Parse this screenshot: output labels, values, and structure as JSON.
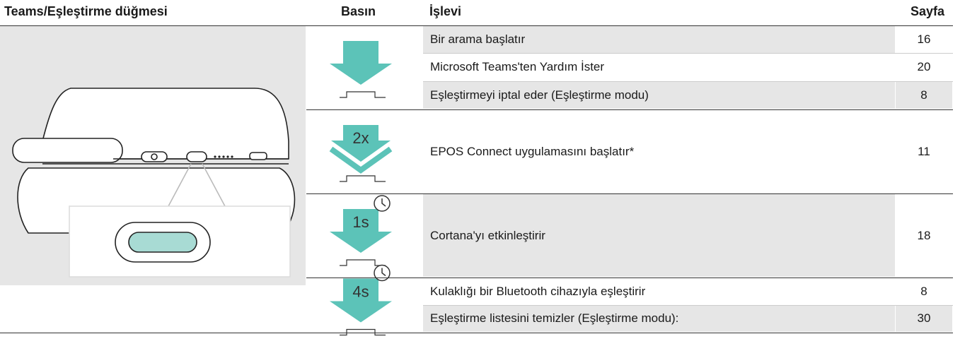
{
  "header": {
    "button": "Teams/Eşleştirme düğmesi",
    "press": "Basın",
    "function": "İşlevi",
    "page": "Sayfa"
  },
  "groups": [
    {
      "rows": [
        {
          "function": "Bir arama başlatır",
          "page": 16
        },
        {
          "function": "Microsoft Teams'ten Yardım İster",
          "page": 20
        },
        {
          "function": "Eşleştirmeyi iptal eder (Eşleştirme modu)",
          "page": 8
        }
      ]
    },
    {
      "label": "2x",
      "rows": [
        {
          "function": "EPOS Connect uygulamasını başlatır*",
          "page": 11
        }
      ]
    },
    {
      "label": "1s",
      "rows": [
        {
          "function": "Cortana'yı etkinleştirir",
          "page": 18
        }
      ]
    },
    {
      "label": "4s",
      "rows": [
        {
          "function": "Kulaklığı bir Bluetooth cihazıyla eşleştirir",
          "page": 8
        },
        {
          "function": "Eşleştirme listesini temizler (Eşleştirme modu):",
          "page": 30
        }
      ]
    }
  ]
}
